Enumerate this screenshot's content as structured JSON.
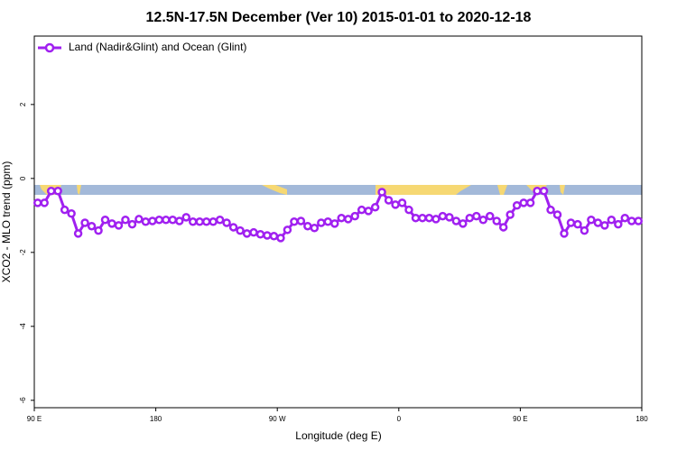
{
  "chart_data": {
    "type": "line",
    "title": "12.5N-17.5N December (Ver 10)   2015-01-01 to 2020-12-18",
    "xlabel": "Longitude (deg E)",
    "ylabel": "XCO2 - MLO trend (ppm)",
    "xlim": [
      90,
      540
    ],
    "ylim": [
      -6.2,
      3.85
    ],
    "xticks": [
      {
        "value": 90,
        "label": "90 E"
      },
      180,
      {
        "value": 270,
        "label": "90 W"
      },
      {
        "value": 360,
        "label": "0"
      },
      {
        "value": 450,
        "label": "90 E"
      },
      {
        "value": 540,
        "label": "180"
      }
    ],
    "yticks": [
      2,
      0,
      -2,
      -4,
      -6
    ],
    "legend": "top-left",
    "series": [
      {
        "name": "Land (Nadir&Glint) and Ocean (Glint)",
        "color": "#a020f0",
        "x": [
          92.5,
          97.5,
          102.5,
          107.5,
          112.5,
          117.5,
          122.5,
          127.5,
          132.5,
          137.5,
          142.5,
          147.5,
          152.5,
          157.5,
          162.5,
          167.5,
          172.5,
          177.5,
          182.5,
          187.5,
          192.5,
          197.5,
          202.5,
          207.5,
          212.5,
          217.5,
          222.5,
          227.5,
          232.5,
          237.5,
          242.5,
          247.5,
          252.5,
          257.5,
          262.5,
          267.5,
          272.5,
          277.5,
          282.5,
          287.5,
          292.5,
          297.5,
          302.5,
          307.5,
          312.5,
          317.5,
          322.5,
          327.5,
          332.5,
          337.5,
          342.5,
          347.5,
          352.5,
          357.5,
          362.5,
          367.5,
          372.5,
          377.5,
          382.5,
          387.5,
          392.5,
          397.5,
          402.5,
          407.5,
          412.5,
          417.5,
          422.5,
          427.5,
          432.5,
          437.5,
          442.5,
          447.5,
          452.5,
          457.5,
          462.5,
          467.5,
          472.5,
          477.5,
          482.5,
          487.5,
          492.5,
          497.5,
          502.5,
          507.5,
          512.5,
          517.5,
          522.5,
          527.5,
          532.5,
          537.5
        ],
        "values": [
          -0.66,
          -0.66,
          -0.34,
          -0.34,
          -0.85,
          -0.95,
          -1.49,
          -1.2,
          -1.29,
          -1.41,
          -1.12,
          -1.22,
          -1.27,
          -1.12,
          -1.24,
          -1.1,
          -1.17,
          -1.15,
          -1.12,
          -1.12,
          -1.12,
          -1.15,
          -1.05,
          -1.17,
          -1.17,
          -1.17,
          -1.17,
          -1.12,
          -1.2,
          -1.32,
          -1.41,
          -1.49,
          -1.46,
          -1.51,
          -1.54,
          -1.56,
          -1.61,
          -1.39,
          -1.17,
          -1.15,
          -1.29,
          -1.34,
          -1.2,
          -1.17,
          -1.22,
          -1.07,
          -1.1,
          -1.02,
          -0.85,
          -0.88,
          -0.78,
          -0.37,
          -0.59,
          -0.71,
          -0.66,
          -0.85,
          -1.07,
          -1.07,
          -1.07,
          -1.1,
          -1.02,
          -1.05,
          -1.15,
          -1.22,
          -1.07,
          -1.02,
          -1.12,
          -1.02,
          -1.15,
          -1.32,
          -0.98,
          -0.73,
          -0.66,
          -0.66,
          -0.34,
          -0.34,
          -0.85,
          -0.98,
          -1.49,
          -1.2,
          -1.24,
          -1.41,
          -1.12,
          -1.2,
          -1.27,
          -1.12,
          -1.24,
          -1.07,
          -1.15,
          -1.15
        ]
      }
    ]
  }
}
